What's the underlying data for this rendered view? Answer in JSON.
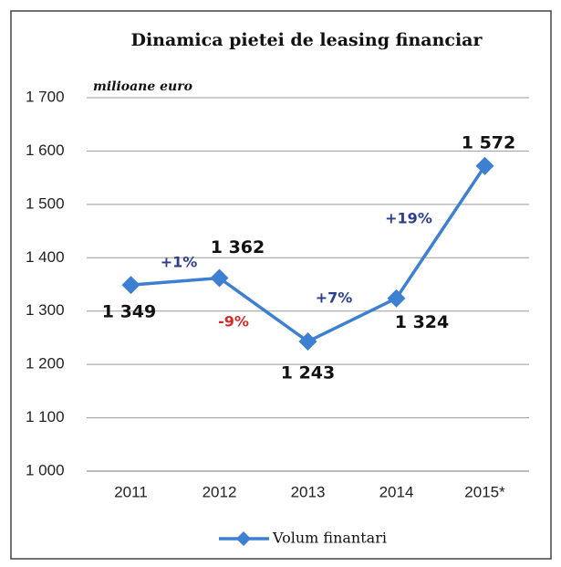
{
  "chart_data": {
    "type": "line",
    "title": "Dinamica pietei de leasing financiar",
    "unit_label": "milioane euro",
    "categories": [
      "2011",
      "2012",
      "2013",
      "2014",
      "2015*"
    ],
    "series": [
      {
        "name": "Volum finantari",
        "color": "#3d7fd1",
        "values": [
          1349,
          1362,
          1243,
          1324,
          1572
        ],
        "value_labels": [
          "1 349",
          "1 362",
          "1 243",
          "1 324",
          "1 572"
        ]
      }
    ],
    "ylim": [
      1000,
      1700
    ],
    "yticks": [
      {
        "value": 1000,
        "label": "1 000"
      },
      {
        "value": 1100,
        "label": "1 100"
      },
      {
        "value": 1200,
        "label": "1 200"
      },
      {
        "value": 1300,
        "label": "1 300"
      },
      {
        "value": 1400,
        "label": "1 400"
      },
      {
        "value": 1500,
        "label": "1 500"
      },
      {
        "value": 1600,
        "label": "1 600"
      },
      {
        "value": 1700,
        "label": "1 700"
      }
    ],
    "grid": true,
    "legend": "bottom",
    "annotations": [
      {
        "text": "+1%",
        "color": "#2b3f8c"
      },
      {
        "text": "-9%",
        "color": "#d42a2a"
      },
      {
        "text": "+7%",
        "color": "#2b3f8c"
      },
      {
        "text": "+19%",
        "color": "#2b3f8c"
      }
    ]
  }
}
